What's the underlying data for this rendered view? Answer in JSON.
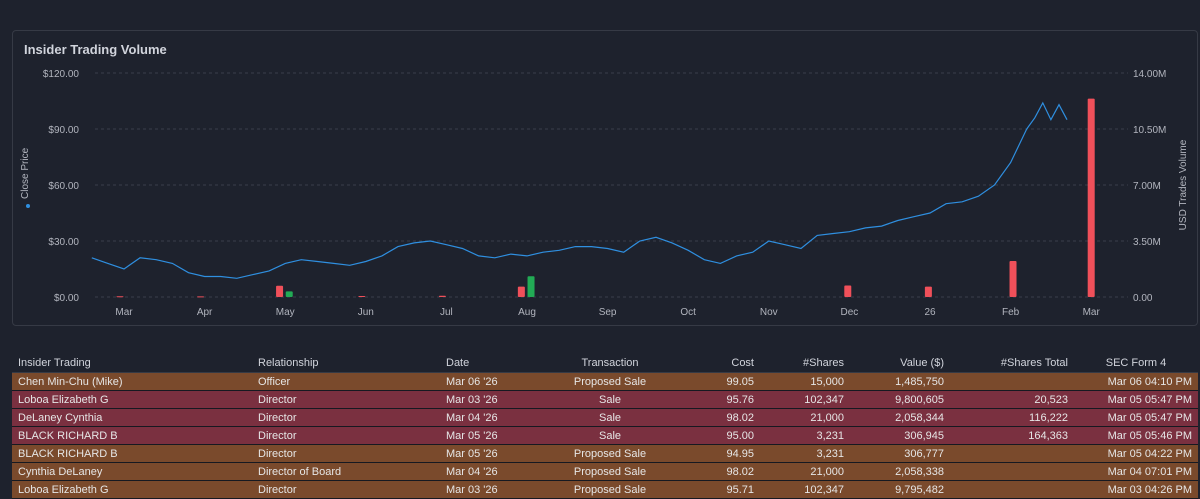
{
  "panel": {
    "title": "Insider Trading Volume"
  },
  "colors": {
    "price_line": "#2f8fe0",
    "sale_bar": "#f0505a",
    "buy_bar": "#22ab55",
    "grid": "#3a3f4b",
    "proposed_row": "#7a4a2c",
    "sale_row": "#7a3040",
    "link": "#7ab0ff"
  },
  "chart_data": {
    "type": "line",
    "y_left_label": "Close Price",
    "y_right_label": "USD Trades Volume",
    "y_left_ticks": [
      "$120.00",
      "$90.00",
      "$60.00",
      "$30.00",
      "$0.00"
    ],
    "y_left_range": [
      0,
      120
    ],
    "y_right_ticks": [
      "14.00M",
      "10.50M",
      "7.00M",
      "3.50M",
      "0.00"
    ],
    "y_right_range": [
      0,
      14000000
    ],
    "x_ticks": [
      "Mar",
      "Apr",
      "May",
      "Jun",
      "Jul",
      "Aug",
      "Sep",
      "Oct",
      "Nov",
      "Dec",
      "26",
      "Feb",
      "Mar"
    ],
    "x_range": [
      0,
      12.6
    ],
    "grid": true,
    "price_series": {
      "name": "Close Price",
      "x": [
        -0.4,
        -0.2,
        0,
        0.2,
        0.4,
        0.6,
        0.8,
        1.0,
        1.2,
        1.4,
        1.6,
        1.8,
        2.0,
        2.2,
        2.4,
        2.6,
        2.8,
        3.0,
        3.2,
        3.4,
        3.6,
        3.8,
        4.0,
        4.2,
        4.4,
        4.6,
        4.8,
        5.0,
        5.2,
        5.4,
        5.6,
        5.8,
        6.0,
        6.2,
        6.4,
        6.6,
        6.8,
        7.0,
        7.2,
        7.4,
        7.6,
        7.8,
        8.0,
        8.2,
        8.4,
        8.6,
        8.8,
        9.0,
        9.2,
        9.4,
        9.6,
        9.8,
        10.0,
        10.2,
        10.4,
        10.6,
        10.8,
        11.0,
        11.2,
        11.3,
        11.4,
        11.5,
        11.6,
        11.7
      ],
      "y": [
        21,
        18,
        15,
        21,
        20,
        18,
        13,
        11,
        11,
        10,
        12,
        14,
        18,
        20,
        19,
        18,
        17,
        19,
        22,
        27,
        29,
        30,
        28,
        26,
        22,
        21,
        23,
        22,
        24,
        25,
        27,
        27,
        26,
        24,
        30,
        32,
        29,
        25,
        20,
        18,
        22,
        24,
        30,
        28,
        26,
        33,
        34,
        35,
        37,
        38,
        41,
        43,
        45,
        50,
        51,
        54,
        60,
        72,
        90,
        96,
        104,
        95,
        103,
        95
      ]
    },
    "volume_bars": [
      {
        "x": -0.05,
        "value": 50000,
        "kind": "sale"
      },
      {
        "x": 0.95,
        "value": 40000,
        "kind": "sale"
      },
      {
        "x": 1.93,
        "value": 700000,
        "kind": "sale"
      },
      {
        "x": 2.05,
        "value": 350000,
        "kind": "buy"
      },
      {
        "x": 2.95,
        "value": 60000,
        "kind": "sale"
      },
      {
        "x": 3.95,
        "value": 80000,
        "kind": "sale"
      },
      {
        "x": 4.93,
        "value": 650000,
        "kind": "sale"
      },
      {
        "x": 5.05,
        "value": 1300000,
        "kind": "buy"
      },
      {
        "x": 8.98,
        "value": 720000,
        "kind": "sale"
      },
      {
        "x": 9.98,
        "value": 650000,
        "kind": "sale"
      },
      {
        "x": 11.03,
        "value": 2250000,
        "kind": "sale"
      },
      {
        "x": 12.0,
        "value": 12400000,
        "kind": "sale"
      }
    ]
  },
  "table": {
    "headers": [
      "Insider Trading",
      "Relationship",
      "Date",
      "Transaction",
      "Cost",
      "#Shares",
      "Value ($)",
      "#Shares Total",
      "SEC Form 4"
    ],
    "rows": [
      {
        "kind": "proposed",
        "insider": "Chen Min-Chu (Mike)",
        "relationship": "Officer",
        "date": "Mar 06 '26",
        "transaction": "Proposed Sale",
        "cost": "99.05",
        "shares": "15,000",
        "value": "1,485,750",
        "shares_total": "",
        "sec_form": "Mar 06 04:10 PM"
      },
      {
        "kind": "sale",
        "insider": "Loboa Elizabeth G",
        "relationship": "Director",
        "date": "Mar 03 '26",
        "transaction": "Sale",
        "cost": "95.76",
        "shares": "102,347",
        "value": "9,800,605",
        "shares_total": "20,523",
        "sec_form": "Mar 05 05:47 PM"
      },
      {
        "kind": "sale",
        "insider": "DeLaney Cynthia",
        "relationship": "Director",
        "date": "Mar 04 '26",
        "transaction": "Sale",
        "cost": "98.02",
        "shares": "21,000",
        "value": "2,058,344",
        "shares_total": "116,222",
        "sec_form": "Mar 05 05:47 PM"
      },
      {
        "kind": "sale",
        "insider": "BLACK RICHARD B",
        "relationship": "Director",
        "date": "Mar 05 '26",
        "transaction": "Sale",
        "cost": "95.00",
        "shares": "3,231",
        "value": "306,945",
        "shares_total": "164,363",
        "sec_form": "Mar 05 05:46 PM"
      },
      {
        "kind": "proposed",
        "insider": "BLACK RICHARD B",
        "relationship": "Director",
        "date": "Mar 05 '26",
        "transaction": "Proposed Sale",
        "cost": "94.95",
        "shares": "3,231",
        "value": "306,777",
        "shares_total": "",
        "sec_form": "Mar 05 04:22 PM"
      },
      {
        "kind": "proposed",
        "insider": "Cynthia DeLaney",
        "relationship": "Director of Board",
        "date": "Mar 04 '26",
        "transaction": "Proposed Sale",
        "cost": "98.02",
        "shares": "21,000",
        "value": "2,058,338",
        "shares_total": "",
        "sec_form": "Mar 04 07:01 PM"
      },
      {
        "kind": "proposed",
        "insider": "Loboa Elizabeth G",
        "relationship": "Director",
        "date": "Mar 03 '26",
        "transaction": "Proposed Sale",
        "cost": "95.71",
        "shares": "102,347",
        "value": "9,795,482",
        "shares_total": "",
        "sec_form": "Mar 03 04:26 PM"
      }
    ]
  }
}
